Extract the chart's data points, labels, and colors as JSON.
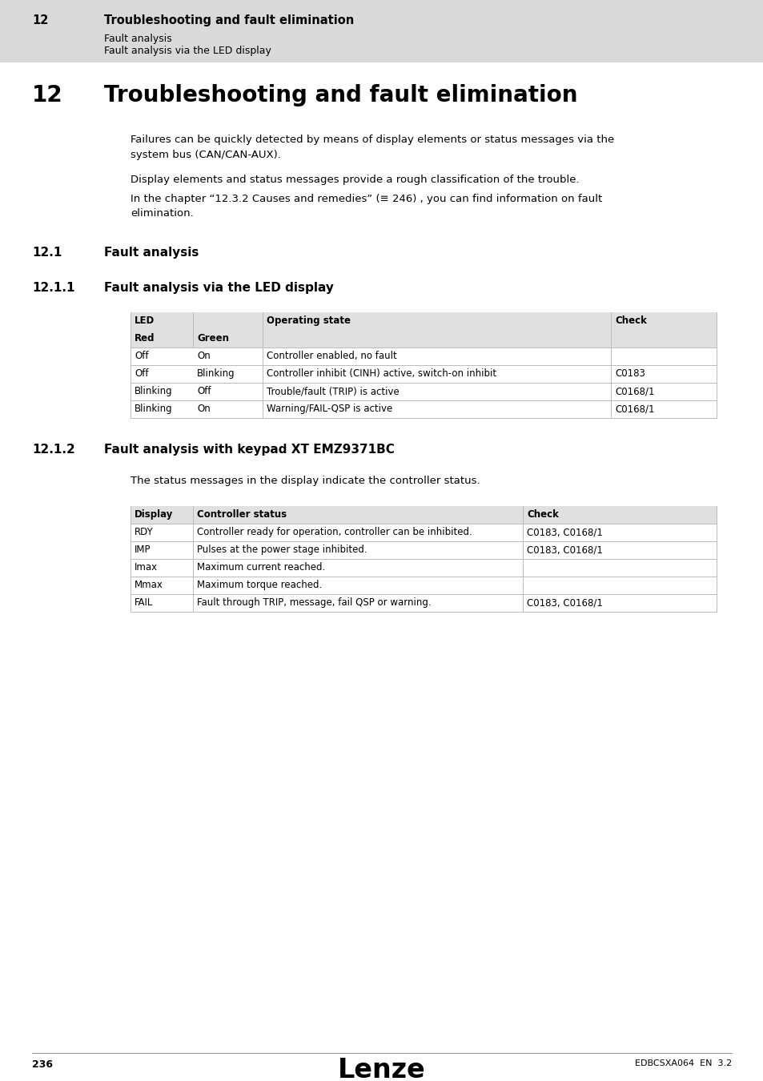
{
  "page_bg": "#ffffff",
  "header_bg": "#d9d9d9",
  "header_num": "12",
  "header_title": "Troubleshooting and fault elimination",
  "header_sub1": "Fault analysis",
  "header_sub2": "Fault analysis via the LED display",
  "chapter_num": "12",
  "chapter_title": "Troubleshooting and fault elimination",
  "intro_text1": "Failures can be quickly detected by means of display elements or status messages via the\nsystem bus (CAN/CAN-AUX).",
  "intro_text2": "Display elements and status messages provide a rough classification of the trouble.",
  "intro_text3": "In the chapter “12.3.2 Causes and remedies” (≡ 246) , you can find information on fault\nelimination.",
  "section1_num": "12.1",
  "section1_title": "Fault analysis",
  "section2_num": "12.1.1",
  "section2_title": "Fault analysis via the LED display",
  "table1_header_bg": "#e0e0e0",
  "table1_rows": [
    [
      "Off",
      "On",
      "Controller enabled, no fault",
      ""
    ],
    [
      "Off",
      "Blinking",
      "Controller inhibit (CINH) active, switch-on inhibit",
      "C0183"
    ],
    [
      "Blinking",
      "Off",
      "Trouble/fault (TRIP) is active",
      "C0168/1"
    ],
    [
      "Blinking",
      "On",
      "Warning/FAIL-QSP is active",
      "C0168/1"
    ]
  ],
  "section3_num": "12.1.2",
  "section3_title": "Fault analysis with keypad XT EMZ9371BC",
  "section3_intro": "The status messages in the display indicate the controller status.",
  "table2_rows": [
    [
      "RDY",
      "Controller ready for operation, controller can be inhibited.",
      "C0183, C0168/1"
    ],
    [
      "IMP",
      "Pulses at the power stage inhibited.",
      "C0183, C0168/1"
    ],
    [
      "Imax",
      "Maximum current reached.",
      ""
    ],
    [
      "Mmax",
      "Maximum torque reached.",
      ""
    ],
    [
      "FAIL",
      "Fault through TRIP, message, fail QSP or warning.",
      "C0183, C0168/1"
    ]
  ],
  "footer_page": "236",
  "footer_logo": "Lenze",
  "footer_code": "EDBCSXA064  EN  3.2"
}
